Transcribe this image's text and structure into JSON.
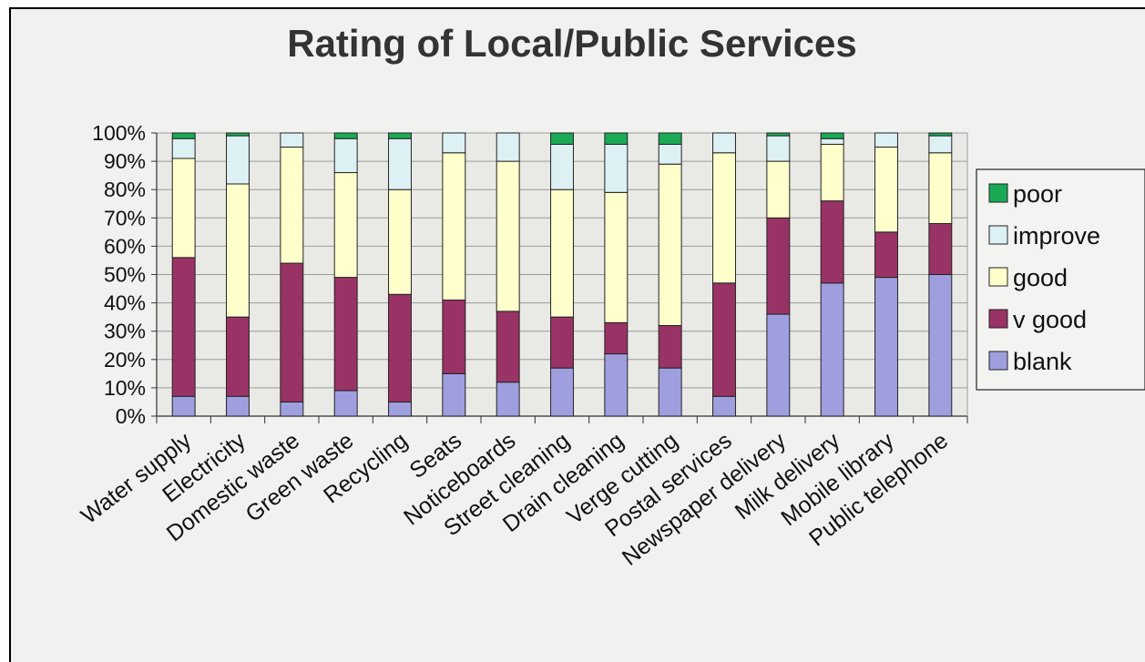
{
  "chart_data": {
    "type": "bar",
    "stacked": true,
    "normalized": true,
    "title": "Rating of Local/Public Services",
    "xlabel": "",
    "ylabel": "",
    "ylim": [
      0,
      100
    ],
    "yticks": [
      "0%",
      "10%",
      "20%",
      "30%",
      "40%",
      "50%",
      "60%",
      "70%",
      "80%",
      "90%",
      "100%"
    ],
    "grid": true,
    "legend_position": "right",
    "categories": [
      "Water supply",
      "Electricity",
      "Domestic waste",
      "Green waste",
      "Recycling",
      "Seats",
      "Noticeboards",
      "Street cleaning",
      "Drain cleaning",
      "Verge cutting",
      "Postal services",
      "Newspaper delivery",
      "Milk delivery",
      "Mobile library",
      "Public telephone"
    ],
    "series": [
      {
        "name": "blank",
        "color": "#9f9fe0",
        "values": [
          7,
          7,
          5,
          9,
          5,
          15,
          12,
          17,
          22,
          17,
          7,
          36,
          47,
          49,
          50
        ]
      },
      {
        "name": "v good",
        "color": "#993366",
        "values": [
          49,
          28,
          49,
          40,
          38,
          26,
          25,
          18,
          11,
          15,
          40,
          34,
          29,
          16,
          18
        ]
      },
      {
        "name": "good",
        "color": "#ffffcc",
        "values": [
          35,
          47,
          41,
          37,
          37,
          52,
          53,
          45,
          46,
          57,
          46,
          20,
          20,
          30,
          25
        ]
      },
      {
        "name": "improve",
        "color": "#ddf0f3",
        "values": [
          7,
          17,
          5,
          12,
          18,
          7,
          10,
          16,
          17,
          7,
          7,
          9,
          2,
          5,
          6
        ]
      },
      {
        "name": "poor",
        "color": "#1aaa55",
        "values": [
          2,
          1,
          0,
          2,
          2,
          0,
          0,
          4,
          4,
          4,
          0,
          1,
          2,
          0,
          1
        ]
      }
    ],
    "legend_order": [
      "poor",
      "improve",
      "good",
      "v good",
      "blank"
    ]
  }
}
